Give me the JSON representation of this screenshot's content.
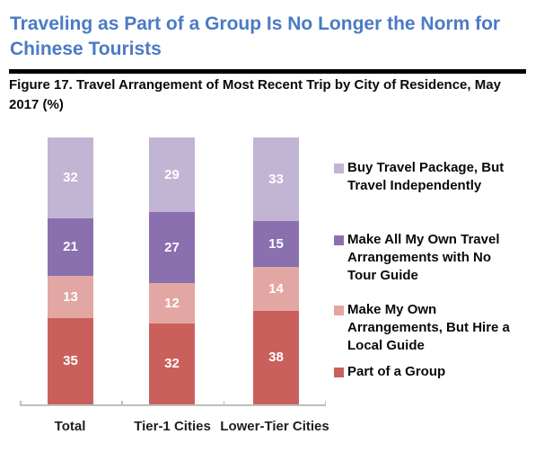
{
  "header": {
    "title": "Traveling as Part of a Group Is No Longer the Norm for Chinese Tourists",
    "title_lines": [
      "Traveling as Part of a Group Is No Longer the Norm for",
      "Chinese Tourists"
    ]
  },
  "figure": {
    "caption": "Figure 17. Travel Arrangement of Most Recent Trip by City of Residence, May 2017 (%)",
    "caption_lines": [
      "Figure 17. Travel Arrangement of Most Recent Trip by City of Residence, May",
      "2017 (%)"
    ]
  },
  "colors": {
    "title_blue": "#4A7BC4",
    "divider_black": "#000000",
    "axis_gray": "#BFBFBF",
    "value_label_white": "#FFFFFF"
  },
  "chart_data": {
    "type": "bar",
    "stacked": true,
    "unit": "%",
    "ylim": [
      0,
      100
    ],
    "grid": false,
    "legend_position": "right",
    "value_labels": "white bold, centered in each segment",
    "categories": [
      "Total",
      "Tier-1 Cities",
      "Lower-Tier Cities"
    ],
    "series": [
      {
        "name": "Buy Travel Package, But Travel Independently",
        "label_lines": [
          "Buy Travel Package, But",
          "Travel Independently"
        ],
        "color": "#C2B4D3",
        "values": [
          32,
          29,
          33
        ]
      },
      {
        "name": "Make All My Own Travel Arrangements with No Tour Guide",
        "label_lines": [
          "Make All My Own Travel",
          "Arrangements with No",
          "Tour Guide"
        ],
        "color": "#8A70AE",
        "values": [
          21,
          27,
          15
        ]
      },
      {
        "name": "Make My Own Arrangements, But Hire a Local Guide",
        "label_lines": [
          "Make My Own",
          "Arrangements, But Hire a",
          "Local Guide"
        ],
        "color": "#E2A7A3",
        "values": [
          13,
          12,
          14
        ]
      },
      {
        "name": "Part of a Group",
        "label_lines": [
          "Part of a Group"
        ],
        "color": "#C9605C",
        "values": [
          35,
          32,
          38
        ]
      }
    ]
  }
}
